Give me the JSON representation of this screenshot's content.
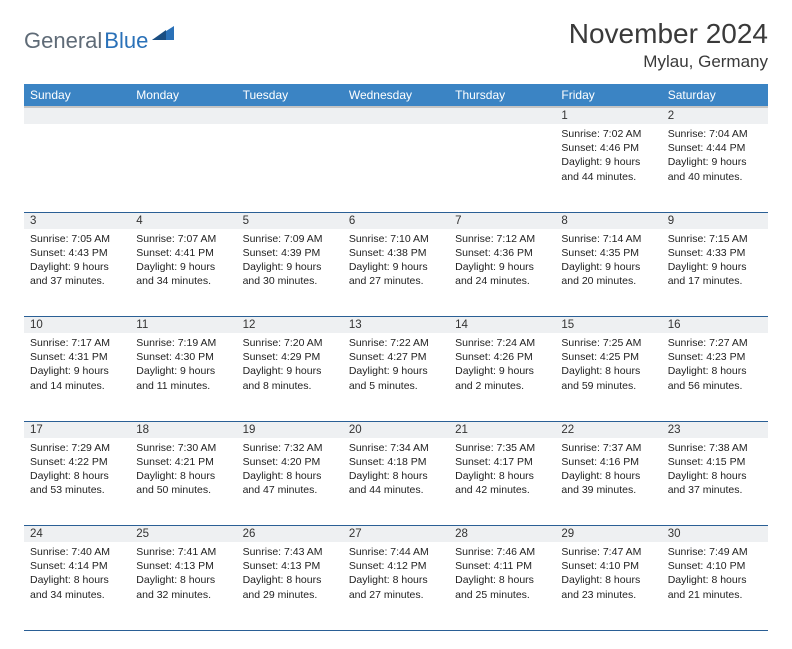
{
  "logo": {
    "part1": "General",
    "part2": "Blue"
  },
  "title": "November 2024",
  "location": "Mylau, Germany",
  "colors": {
    "header_bg": "#3b84c4",
    "header_text": "#ffffff",
    "daynum_bg": "#eef0f2",
    "border": "#2a5f95",
    "logo_gray": "#5f6b77",
    "logo_blue": "#2a71b8"
  },
  "weekdays": [
    "Sunday",
    "Monday",
    "Tuesday",
    "Wednesday",
    "Thursday",
    "Friday",
    "Saturday"
  ],
  "weeks": [
    [
      null,
      null,
      null,
      null,
      null,
      {
        "n": "1",
        "sr": "Sunrise: 7:02 AM",
        "ss": "Sunset: 4:46 PM",
        "d1": "Daylight: 9 hours",
        "d2": "and 44 minutes."
      },
      {
        "n": "2",
        "sr": "Sunrise: 7:04 AM",
        "ss": "Sunset: 4:44 PM",
        "d1": "Daylight: 9 hours",
        "d2": "and 40 minutes."
      }
    ],
    [
      {
        "n": "3",
        "sr": "Sunrise: 7:05 AM",
        "ss": "Sunset: 4:43 PM",
        "d1": "Daylight: 9 hours",
        "d2": "and 37 minutes."
      },
      {
        "n": "4",
        "sr": "Sunrise: 7:07 AM",
        "ss": "Sunset: 4:41 PM",
        "d1": "Daylight: 9 hours",
        "d2": "and 34 minutes."
      },
      {
        "n": "5",
        "sr": "Sunrise: 7:09 AM",
        "ss": "Sunset: 4:39 PM",
        "d1": "Daylight: 9 hours",
        "d2": "and 30 minutes."
      },
      {
        "n": "6",
        "sr": "Sunrise: 7:10 AM",
        "ss": "Sunset: 4:38 PM",
        "d1": "Daylight: 9 hours",
        "d2": "and 27 minutes."
      },
      {
        "n": "7",
        "sr": "Sunrise: 7:12 AM",
        "ss": "Sunset: 4:36 PM",
        "d1": "Daylight: 9 hours",
        "d2": "and 24 minutes."
      },
      {
        "n": "8",
        "sr": "Sunrise: 7:14 AM",
        "ss": "Sunset: 4:35 PM",
        "d1": "Daylight: 9 hours",
        "d2": "and 20 minutes."
      },
      {
        "n": "9",
        "sr": "Sunrise: 7:15 AM",
        "ss": "Sunset: 4:33 PM",
        "d1": "Daylight: 9 hours",
        "d2": "and 17 minutes."
      }
    ],
    [
      {
        "n": "10",
        "sr": "Sunrise: 7:17 AM",
        "ss": "Sunset: 4:31 PM",
        "d1": "Daylight: 9 hours",
        "d2": "and 14 minutes."
      },
      {
        "n": "11",
        "sr": "Sunrise: 7:19 AM",
        "ss": "Sunset: 4:30 PM",
        "d1": "Daylight: 9 hours",
        "d2": "and 11 minutes."
      },
      {
        "n": "12",
        "sr": "Sunrise: 7:20 AM",
        "ss": "Sunset: 4:29 PM",
        "d1": "Daylight: 9 hours",
        "d2": "and 8 minutes."
      },
      {
        "n": "13",
        "sr": "Sunrise: 7:22 AM",
        "ss": "Sunset: 4:27 PM",
        "d1": "Daylight: 9 hours",
        "d2": "and 5 minutes."
      },
      {
        "n": "14",
        "sr": "Sunrise: 7:24 AM",
        "ss": "Sunset: 4:26 PM",
        "d1": "Daylight: 9 hours",
        "d2": "and 2 minutes."
      },
      {
        "n": "15",
        "sr": "Sunrise: 7:25 AM",
        "ss": "Sunset: 4:25 PM",
        "d1": "Daylight: 8 hours",
        "d2": "and 59 minutes."
      },
      {
        "n": "16",
        "sr": "Sunrise: 7:27 AM",
        "ss": "Sunset: 4:23 PM",
        "d1": "Daylight: 8 hours",
        "d2": "and 56 minutes."
      }
    ],
    [
      {
        "n": "17",
        "sr": "Sunrise: 7:29 AM",
        "ss": "Sunset: 4:22 PM",
        "d1": "Daylight: 8 hours",
        "d2": "and 53 minutes."
      },
      {
        "n": "18",
        "sr": "Sunrise: 7:30 AM",
        "ss": "Sunset: 4:21 PM",
        "d1": "Daylight: 8 hours",
        "d2": "and 50 minutes."
      },
      {
        "n": "19",
        "sr": "Sunrise: 7:32 AM",
        "ss": "Sunset: 4:20 PM",
        "d1": "Daylight: 8 hours",
        "d2": "and 47 minutes."
      },
      {
        "n": "20",
        "sr": "Sunrise: 7:34 AM",
        "ss": "Sunset: 4:18 PM",
        "d1": "Daylight: 8 hours",
        "d2": "and 44 minutes."
      },
      {
        "n": "21",
        "sr": "Sunrise: 7:35 AM",
        "ss": "Sunset: 4:17 PM",
        "d1": "Daylight: 8 hours",
        "d2": "and 42 minutes."
      },
      {
        "n": "22",
        "sr": "Sunrise: 7:37 AM",
        "ss": "Sunset: 4:16 PM",
        "d1": "Daylight: 8 hours",
        "d2": "and 39 minutes."
      },
      {
        "n": "23",
        "sr": "Sunrise: 7:38 AM",
        "ss": "Sunset: 4:15 PM",
        "d1": "Daylight: 8 hours",
        "d2": "and 37 minutes."
      }
    ],
    [
      {
        "n": "24",
        "sr": "Sunrise: 7:40 AM",
        "ss": "Sunset: 4:14 PM",
        "d1": "Daylight: 8 hours",
        "d2": "and 34 minutes."
      },
      {
        "n": "25",
        "sr": "Sunrise: 7:41 AM",
        "ss": "Sunset: 4:13 PM",
        "d1": "Daylight: 8 hours",
        "d2": "and 32 minutes."
      },
      {
        "n": "26",
        "sr": "Sunrise: 7:43 AM",
        "ss": "Sunset: 4:13 PM",
        "d1": "Daylight: 8 hours",
        "d2": "and 29 minutes."
      },
      {
        "n": "27",
        "sr": "Sunrise: 7:44 AM",
        "ss": "Sunset: 4:12 PM",
        "d1": "Daylight: 8 hours",
        "d2": "and 27 minutes."
      },
      {
        "n": "28",
        "sr": "Sunrise: 7:46 AM",
        "ss": "Sunset: 4:11 PM",
        "d1": "Daylight: 8 hours",
        "d2": "and 25 minutes."
      },
      {
        "n": "29",
        "sr": "Sunrise: 7:47 AM",
        "ss": "Sunset: 4:10 PM",
        "d1": "Daylight: 8 hours",
        "d2": "and 23 minutes."
      },
      {
        "n": "30",
        "sr": "Sunrise: 7:49 AM",
        "ss": "Sunset: 4:10 PM",
        "d1": "Daylight: 8 hours",
        "d2": "and 21 minutes."
      }
    ]
  ]
}
